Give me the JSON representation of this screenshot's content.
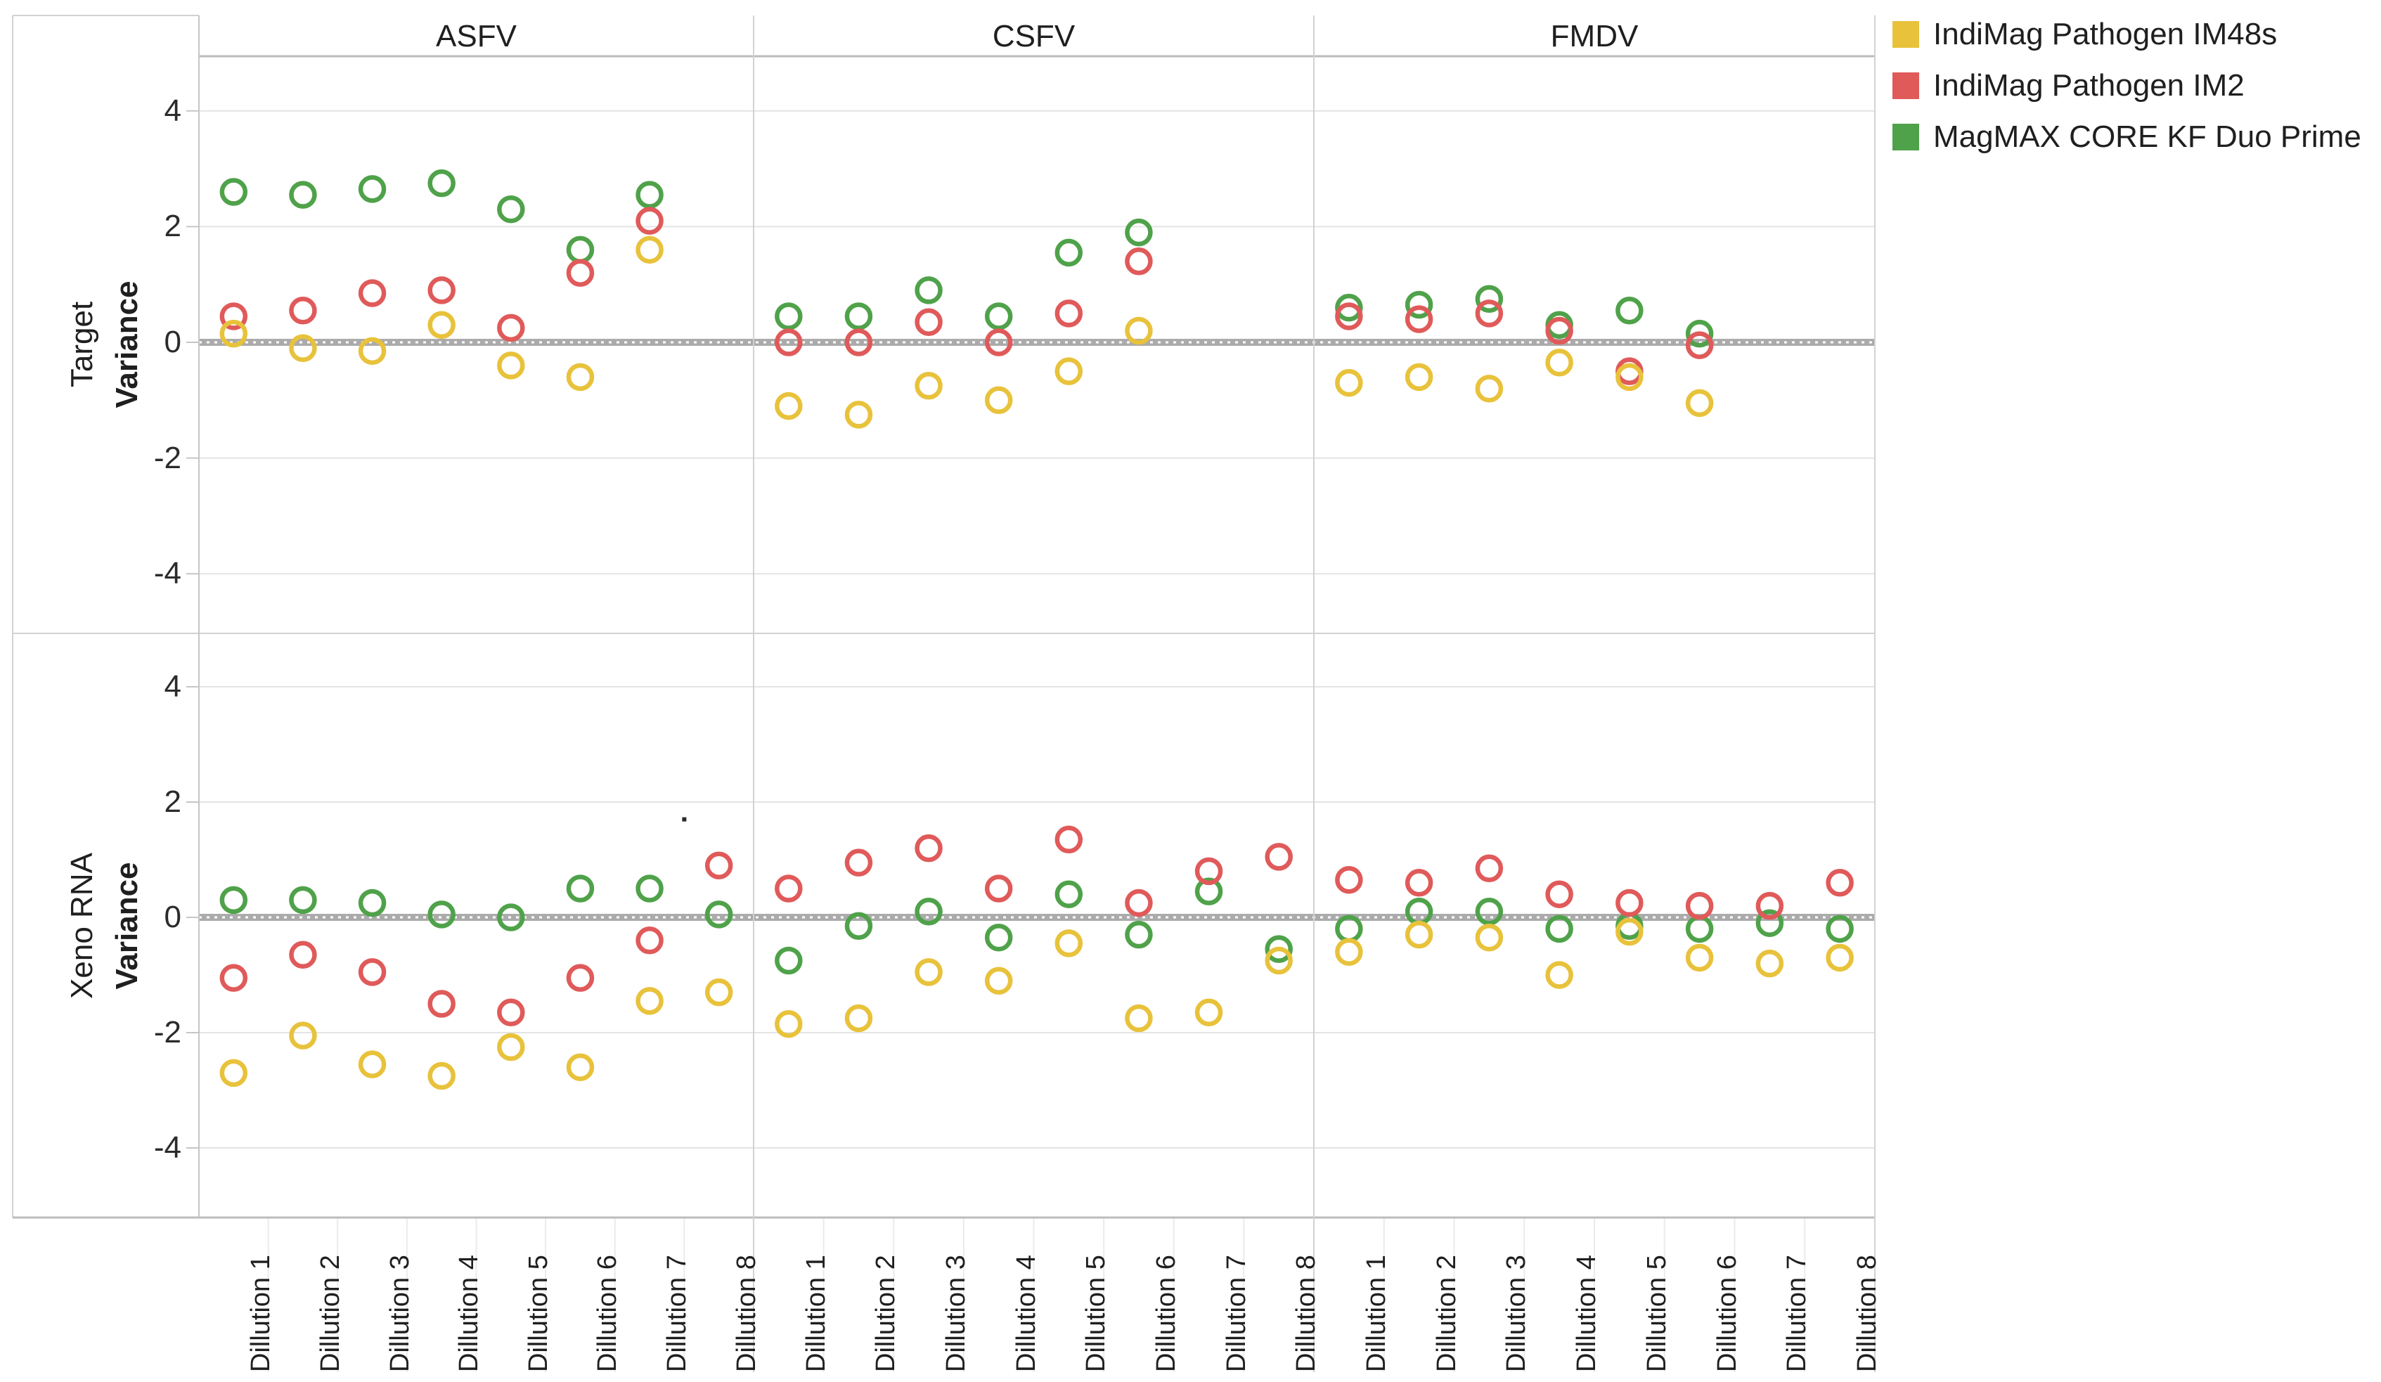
{
  "legend": {
    "items": [
      {
        "label": "IndiMag Pathogen IM48s",
        "color": "#E8C23B"
      },
      {
        "label": "IndiMag Pathogen IM2",
        "color": "#E05A5A"
      },
      {
        "label": "MagMAX CORE KF Duo Prime",
        "color": "#4FA24A"
      }
    ]
  },
  "chart_data": {
    "type": "scatter",
    "marker": "open-circle",
    "facet_columns": [
      "ASFV",
      "CSFV",
      "FMDV"
    ],
    "facet_rows": [
      "Target",
      "Xeno RNA"
    ],
    "row_axis_label": "Variance",
    "x_categories": [
      "Dillution 1",
      "Dillution 2",
      "Dillution 3",
      "Dillution 4",
      "Dillution 5",
      "Dillution 6",
      "Dillution 7",
      "Dillution 8"
    ],
    "yticks": [
      4,
      2,
      0,
      -2,
      -4
    ],
    "ylim": [
      -5,
      5
    ],
    "zero_reference_band": true,
    "grid": "horizontal",
    "legend_position": "top-right",
    "colors": {
      "zero_band": "#ABABAB",
      "gridline": "#E4E4E4",
      "panel_border": "#D2D2D2",
      "axis_line": "#C6C6C6",
      "text": "#1f1f1f"
    },
    "series": [
      {
        "name": "IndiMag Pathogen IM48s",
        "color": "#E8C23B",
        "values": {
          "Target": {
            "ASFV": [
              0.15,
              -0.1,
              -0.15,
              0.3,
              -0.4,
              -0.6,
              1.6,
              null
            ],
            "CSFV": [
              -1.1,
              -1.25,
              -0.75,
              -1.0,
              -0.5,
              0.2,
              null,
              null
            ],
            "FMDV": [
              -0.7,
              -0.6,
              -0.8,
              -0.35,
              -0.6,
              -1.05,
              null,
              null
            ]
          },
          "Xeno RNA": {
            "ASFV": [
              -2.7,
              -2.05,
              -2.55,
              -2.75,
              -2.25,
              -2.6,
              -1.45,
              -1.3
            ],
            "CSFV": [
              -1.85,
              -1.75,
              -0.95,
              -1.1,
              -0.45,
              -1.75,
              -1.65,
              -0.75
            ],
            "FMDV": [
              -0.6,
              -0.3,
              -0.35,
              -1.0,
              -0.25,
              -0.7,
              -0.8,
              -0.7
            ]
          }
        }
      },
      {
        "name": "IndiMag Pathogen IM2",
        "color": "#E05A5A",
        "values": {
          "Target": {
            "ASFV": [
              0.45,
              0.55,
              0.85,
              0.9,
              0.25,
              1.2,
              2.1,
              null
            ],
            "CSFV": [
              0.0,
              0.0,
              0.35,
              0.0,
              0.5,
              1.4,
              null,
              null
            ],
            "FMDV": [
              0.45,
              0.4,
              0.5,
              0.2,
              -0.5,
              -0.05,
              null,
              null
            ]
          },
          "Xeno RNA": {
            "ASFV": [
              -1.05,
              -0.65,
              -0.95,
              -1.5,
              -1.65,
              -1.05,
              -0.4,
              0.9
            ],
            "CSFV": [
              0.5,
              0.95,
              1.2,
              0.5,
              1.35,
              0.25,
              0.8,
              1.05
            ],
            "FMDV": [
              0.65,
              0.6,
              0.85,
              0.4,
              0.25,
              0.2,
              0.2,
              0.6
            ]
          }
        }
      },
      {
        "name": "MagMAX CORE KF Duo Prime",
        "color": "#4FA24A",
        "values": {
          "Target": {
            "ASFV": [
              2.6,
              2.55,
              2.65,
              2.75,
              2.3,
              1.6,
              2.55,
              null
            ],
            "CSFV": [
              0.45,
              0.45,
              0.9,
              0.45,
              1.55,
              1.9,
              null,
              null
            ],
            "FMDV": [
              0.6,
              0.65,
              0.75,
              0.3,
              0.55,
              0.15,
              null,
              null
            ]
          },
          "Xeno RNA": {
            "ASFV": [
              0.3,
              0.3,
              0.25,
              0.05,
              0.0,
              0.5,
              0.5,
              0.05
            ],
            "CSFV": [
              -0.75,
              -0.15,
              0.1,
              -0.35,
              0.4,
              -0.3,
              0.45,
              -0.55
            ],
            "FMDV": [
              -0.2,
              0.1,
              0.1,
              -0.2,
              -0.15,
              -0.2,
              -0.1,
              -0.2
            ]
          }
        }
      }
    ],
    "annotations": [
      {
        "type": "stray-dot",
        "facet_row": "Xeno RNA",
        "facet_col": "ASFV",
        "x_index": 6.5,
        "value": 1.7
      }
    ]
  }
}
